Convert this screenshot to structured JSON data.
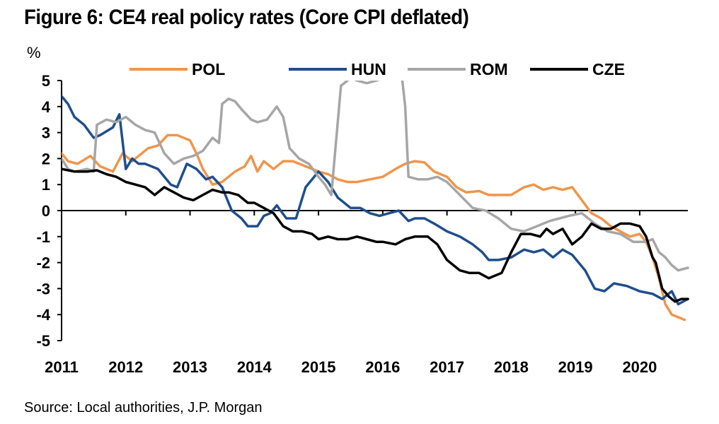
{
  "title": "Figure 6: CE4 real policy rates (Core CPI deflated)",
  "source": "Source: Local authorities, J.P. Morgan",
  "chart_data": {
    "type": "line",
    "ylabel": "%",
    "ylim": [
      -5,
      5
    ],
    "yticks": [
      "5",
      "4",
      "3",
      "2",
      "1",
      "0",
      "-1",
      "-2",
      "-3",
      "-4",
      "-5"
    ],
    "xlim": [
      2011.0,
      2020.75
    ],
    "xticks": [
      "2011",
      "2012",
      "2013",
      "2014",
      "2015",
      "2016",
      "2017",
      "2018",
      "2019",
      "2020"
    ],
    "legend_position": "top",
    "series": [
      {
        "name": "POL",
        "color": "#f0954a",
        "x": [
          2011.0,
          2011.1,
          2011.25,
          2011.45,
          2011.6,
          2011.8,
          2011.95,
          2012.1,
          2012.2,
          2012.35,
          2012.5,
          2012.65,
          2012.8,
          2013.0,
          2013.1,
          2013.2,
          2013.35,
          2013.5,
          2013.7,
          2013.85,
          2013.95,
          2014.05,
          2014.15,
          2014.3,
          2014.45,
          2014.6,
          2014.8,
          2015.0,
          2015.15,
          2015.3,
          2015.45,
          2015.6,
          2015.8,
          2016.0,
          2016.2,
          2016.35,
          2016.5,
          2016.65,
          2016.8,
          2017.0,
          2017.15,
          2017.3,
          2017.5,
          2017.65,
          2017.8,
          2018.0,
          2018.2,
          2018.35,
          2018.5,
          2018.65,
          2018.8,
          2018.95,
          2019.1,
          2019.25,
          2019.4,
          2019.55,
          2019.7,
          2019.85,
          2020.0,
          2020.1,
          2020.2,
          2020.3,
          2020.4,
          2020.5,
          2020.6,
          2020.7
        ],
        "values": [
          2.2,
          1.9,
          1.8,
          2.1,
          1.7,
          1.5,
          2.2,
          1.9,
          2.1,
          2.4,
          2.5,
          2.9,
          2.9,
          2.7,
          2.2,
          1.6,
          1.0,
          1.1,
          1.5,
          1.7,
          2.1,
          1.5,
          1.9,
          1.6,
          1.9,
          1.9,
          1.7,
          1.5,
          1.4,
          1.2,
          1.1,
          1.1,
          1.2,
          1.3,
          1.6,
          1.8,
          1.9,
          1.85,
          1.5,
          1.3,
          0.9,
          0.7,
          0.75,
          0.6,
          0.6,
          0.6,
          0.9,
          1.0,
          0.8,
          0.9,
          0.8,
          0.9,
          0.4,
          -0.1,
          -0.3,
          -0.6,
          -0.8,
          -1.0,
          -0.9,
          -1.2,
          -1.8,
          -2.6,
          -3.6,
          -4.0,
          -4.1,
          -4.2
        ]
      },
      {
        "name": "HUN",
        "color": "#1f4e8c",
        "x": [
          2011.0,
          2011.1,
          2011.2,
          2011.35,
          2011.5,
          2011.6,
          2011.8,
          2011.9,
          2012.0,
          2012.1,
          2012.2,
          2012.3,
          2012.5,
          2012.7,
          2012.8,
          2012.95,
          2013.1,
          2013.25,
          2013.35,
          2013.5,
          2013.65,
          2013.8,
          2013.9,
          2014.05,
          2014.15,
          2014.25,
          2014.35,
          2014.5,
          2014.65,
          2014.8,
          2015.0,
          2015.15,
          2015.3,
          2015.5,
          2015.65,
          2015.8,
          2015.95,
          2016.1,
          2016.25,
          2016.4,
          2016.5,
          2016.65,
          2016.8,
          2017.0,
          2017.2,
          2017.4,
          2017.55,
          2017.65,
          2017.8,
          2018.0,
          2018.2,
          2018.35,
          2018.5,
          2018.65,
          2018.8,
          2018.95,
          2019.15,
          2019.3,
          2019.45,
          2019.6,
          2019.8,
          2020.0,
          2020.2,
          2020.35,
          2020.5,
          2020.6,
          2020.75
        ],
        "values": [
          4.4,
          4.1,
          3.6,
          3.3,
          2.8,
          2.9,
          3.2,
          3.7,
          1.6,
          2.0,
          1.8,
          1.8,
          1.6,
          1.0,
          0.9,
          1.8,
          1.6,
          1.2,
          1.3,
          0.9,
          0.0,
          -0.3,
          -0.6,
          -0.6,
          -0.2,
          -0.1,
          0.2,
          -0.3,
          -0.3,
          0.9,
          1.5,
          1.1,
          0.5,
          0.1,
          0.1,
          -0.1,
          -0.2,
          -0.1,
          0.0,
          -0.4,
          -0.3,
          -0.3,
          -0.5,
          -0.8,
          -1.0,
          -1.3,
          -1.6,
          -1.9,
          -1.9,
          -1.8,
          -1.5,
          -1.6,
          -1.5,
          -1.8,
          -1.5,
          -1.7,
          -2.3,
          -3.0,
          -3.1,
          -2.8,
          -2.9,
          -3.1,
          -3.2,
          -3.4,
          -3.1,
          -3.6,
          -3.4
        ]
      },
      {
        "name": "ROM",
        "color": "#a6a6a6",
        "x": [
          2011.0,
          2011.1,
          2011.2,
          2011.4,
          2011.5,
          2011.55,
          2011.7,
          2011.85,
          2012.0,
          2012.15,
          2012.3,
          2012.45,
          2012.6,
          2012.75,
          2012.9,
          2013.05,
          2013.2,
          2013.35,
          2013.45,
          2013.5,
          2013.6,
          2013.7,
          2013.8,
          2013.95,
          2014.05,
          2014.2,
          2014.35,
          2014.45,
          2014.55,
          2014.7,
          2014.85,
          2015.0,
          2015.1,
          2015.2,
          2015.35,
          2015.4,
          2015.5,
          2015.6,
          2015.75,
          2015.9,
          2016.0,
          2016.15,
          2016.3,
          2016.35,
          2016.4,
          2016.55,
          2016.7,
          2016.85,
          2017.0,
          2017.2,
          2017.4,
          2017.6,
          2017.8,
          2018.0,
          2018.2,
          2018.4,
          2018.6,
          2018.75,
          2018.9,
          2019.1,
          2019.3,
          2019.5,
          2019.7,
          2019.9,
          2020.1,
          2020.2,
          2020.3,
          2020.4,
          2020.5,
          2020.6,
          2020.75
        ],
        "values": [
          2.0,
          1.6,
          1.5,
          1.6,
          1.5,
          3.3,
          3.5,
          3.4,
          3.6,
          3.3,
          3.1,
          3.0,
          2.2,
          1.8,
          2.0,
          2.1,
          2.3,
          2.8,
          2.6,
          4.1,
          4.3,
          4.2,
          3.9,
          3.5,
          3.4,
          3.5,
          4.0,
          3.6,
          2.4,
          2.0,
          1.8,
          1.3,
          1.0,
          0.6,
          4.8,
          4.9,
          5.1,
          5.0,
          4.9,
          5.0,
          5.1,
          5.1,
          5.1,
          4.0,
          1.3,
          1.2,
          1.2,
          1.3,
          1.1,
          0.6,
          0.1,
          0.0,
          -0.3,
          -0.7,
          -0.8,
          -0.6,
          -0.4,
          -0.3,
          -0.2,
          -0.1,
          -0.5,
          -0.8,
          -0.9,
          -1.2,
          -1.2,
          -1.1,
          -1.6,
          -1.8,
          -2.1,
          -2.3,
          -2.2
        ]
      },
      {
        "name": "CZE",
        "color": "#000000",
        "x": [
          2011.0,
          2011.2,
          2011.4,
          2011.55,
          2011.7,
          2011.85,
          2012.0,
          2012.15,
          2012.3,
          2012.45,
          2012.6,
          2012.75,
          2012.9,
          2013.05,
          2013.2,
          2013.35,
          2013.5,
          2013.6,
          2013.75,
          2013.9,
          2014.0,
          2014.15,
          2014.3,
          2014.45,
          2014.6,
          2014.75,
          2014.9,
          2015.0,
          2015.15,
          2015.3,
          2015.45,
          2015.6,
          2015.75,
          2015.9,
          2016.0,
          2016.2,
          2016.35,
          2016.5,
          2016.7,
          2016.85,
          2017.0,
          2017.2,
          2017.35,
          2017.5,
          2017.65,
          2017.75,
          2017.85,
          2018.0,
          2018.15,
          2018.3,
          2018.45,
          2018.55,
          2018.65,
          2018.8,
          2018.95,
          2019.1,
          2019.25,
          2019.4,
          2019.55,
          2019.7,
          2019.85,
          2020.0,
          2020.1,
          2020.2,
          2020.25,
          2020.35,
          2020.45,
          2020.55,
          2020.65,
          2020.75
        ],
        "values": [
          1.6,
          1.5,
          1.5,
          1.55,
          1.4,
          1.3,
          1.1,
          1.0,
          0.9,
          0.6,
          0.9,
          0.7,
          0.5,
          0.4,
          0.6,
          0.8,
          0.7,
          0.7,
          0.6,
          0.3,
          0.3,
          0.1,
          -0.1,
          -0.6,
          -0.8,
          -0.8,
          -0.9,
          -1.1,
          -1.0,
          -1.1,
          -1.1,
          -1.0,
          -1.1,
          -1.2,
          -1.2,
          -1.3,
          -1.1,
          -1.0,
          -1.0,
          -1.3,
          -1.9,
          -2.3,
          -2.4,
          -2.4,
          -2.6,
          -2.5,
          -2.4,
          -1.6,
          -0.9,
          -0.9,
          -1.0,
          -0.7,
          -0.9,
          -0.7,
          -1.3,
          -1.0,
          -0.5,
          -0.7,
          -0.7,
          -0.5,
          -0.5,
          -0.6,
          -1.0,
          -1.8,
          -2.0,
          -3.0,
          -3.3,
          -3.5,
          -3.4,
          -3.4
        ]
      }
    ]
  }
}
